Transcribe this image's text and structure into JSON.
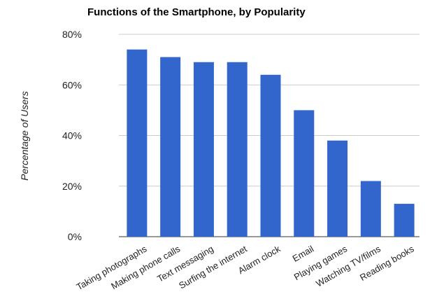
{
  "chart_data": {
    "type": "bar",
    "title": "Functions of the Smartphone, by Popularity",
    "xlabel": "",
    "ylabel": "Percentage of Users",
    "ylim": [
      0,
      80
    ],
    "yticks": [
      "0%",
      "20%",
      "40%",
      "60%",
      "80%"
    ],
    "categories": [
      "Taking photographs",
      "Making phone calls",
      "Text messaging",
      "Surfing the internet",
      "Alarm clock",
      "Email",
      "Playing games",
      "Watching TV/films",
      "Reading books"
    ],
    "values": [
      74,
      71,
      69,
      69,
      64,
      50,
      38,
      22,
      13
    ],
    "grid": true,
    "legend": "none",
    "bar_color": "#3366cc"
  }
}
